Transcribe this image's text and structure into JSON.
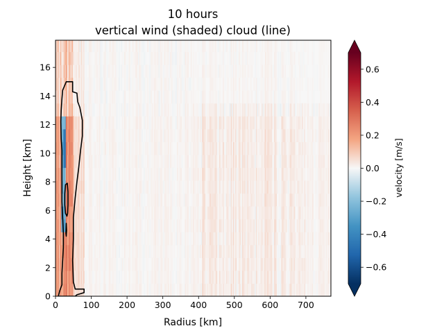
{
  "chart_data": {
    "type": "heatmap",
    "title_line1": "10 hours",
    "title_line2": "vertical wind (shaded) cloud (line)",
    "xlabel": "Radius [km]",
    "ylabel": "Height [km]",
    "xlim": [
      0,
      770
    ],
    "ylim": [
      0,
      17.9
    ],
    "xticks": [
      0,
      100,
      200,
      300,
      400,
      500,
      600,
      700
    ],
    "yticks": [
      0,
      2,
      4,
      6,
      8,
      10,
      12,
      14,
      16
    ],
    "colorbar": {
      "label": "velocity [m/s]",
      "colormap": "RdBu_r",
      "vmin": -0.7,
      "vmax": 0.7,
      "ticks": [
        -0.6,
        -0.4,
        -0.2,
        0.0,
        0.2,
        0.4,
        0.6
      ],
      "tick_labels": [
        "−0.6",
        "−0.4",
        "−0.2",
        "0.0",
        "0.2",
        "0.4",
        "0.6"
      ],
      "extend": "both"
    },
    "cloud_contours": [
      {
        "name": "outer",
        "points": [
          [
            8,
            0
          ],
          [
            12,
            0.4
          ],
          [
            18,
            0.8
          ],
          [
            18,
            1.6
          ],
          [
            20,
            2.5
          ],
          [
            22,
            3.4
          ],
          [
            22,
            4.4
          ],
          [
            20,
            5.5
          ],
          [
            18,
            6.6
          ],
          [
            18,
            7.8
          ],
          [
            18,
            9
          ],
          [
            18,
            10.2
          ],
          [
            16,
            11
          ],
          [
            15,
            12.2
          ],
          [
            16,
            13
          ],
          [
            18,
            13.8
          ],
          [
            20,
            14.4
          ],
          [
            30,
            15
          ],
          [
            48,
            15
          ],
          [
            48,
            14.3
          ],
          [
            60,
            14.2
          ],
          [
            62,
            13.6
          ],
          [
            68,
            13.2
          ],
          [
            75,
            12.3
          ],
          [
            75,
            11.2
          ],
          [
            70,
            10.2
          ],
          [
            65,
            9
          ],
          [
            60,
            8
          ],
          [
            55,
            6.9
          ],
          [
            50,
            5.5
          ],
          [
            50,
            4
          ],
          [
            48,
            2.5
          ],
          [
            50,
            1
          ],
          [
            55,
            0.5
          ],
          [
            80,
            0.5
          ],
          [
            80,
            0.25
          ],
          [
            60,
            0.1
          ],
          [
            55,
            0
          ],
          [
            50,
            0
          ]
        ]
      },
      {
        "name": "inner-upper",
        "points": [
          [
            28,
            7.8
          ],
          [
            33,
            7.9
          ],
          [
            35,
            7.3
          ],
          [
            35,
            6.4
          ],
          [
            34,
            5.8
          ],
          [
            32,
            5.6
          ],
          [
            28,
            5.8
          ],
          [
            26,
            6.4
          ],
          [
            26,
            7.2
          ]
        ]
      },
      {
        "name": "inner-lower",
        "points": [
          [
            29,
            4.4
          ],
          [
            30,
            5.1
          ],
          [
            31,
            4.6
          ],
          [
            30,
            4.2
          ]
        ]
      }
    ]
  }
}
